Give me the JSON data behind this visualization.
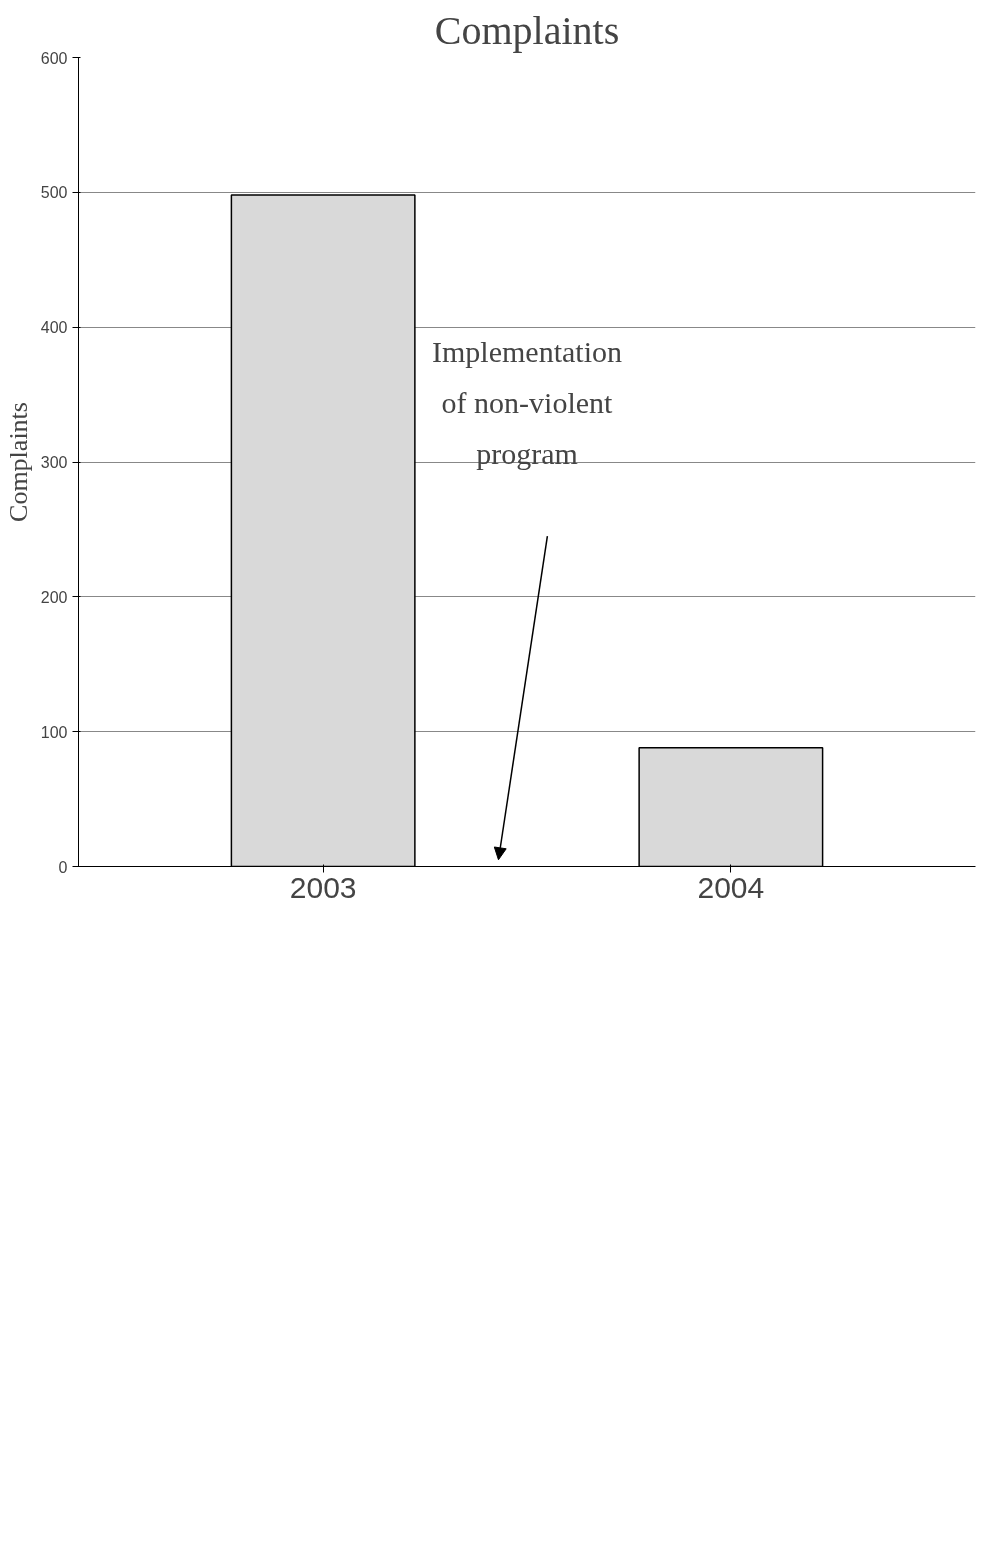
{
  "chart_data": {
    "type": "bar",
    "title": "Complaints",
    "ylabel": "Complaints",
    "categories": [
      "2003",
      "2004"
    ],
    "values": [
      498,
      88
    ],
    "color": "#d9d9d9",
    "ylim": [
      0,
      600
    ],
    "yticks": [
      0,
      100,
      200,
      300,
      400,
      500,
      600
    ],
    "grid": "y",
    "annotations": [
      "Implementation of non-violent program"
    ]
  }
}
